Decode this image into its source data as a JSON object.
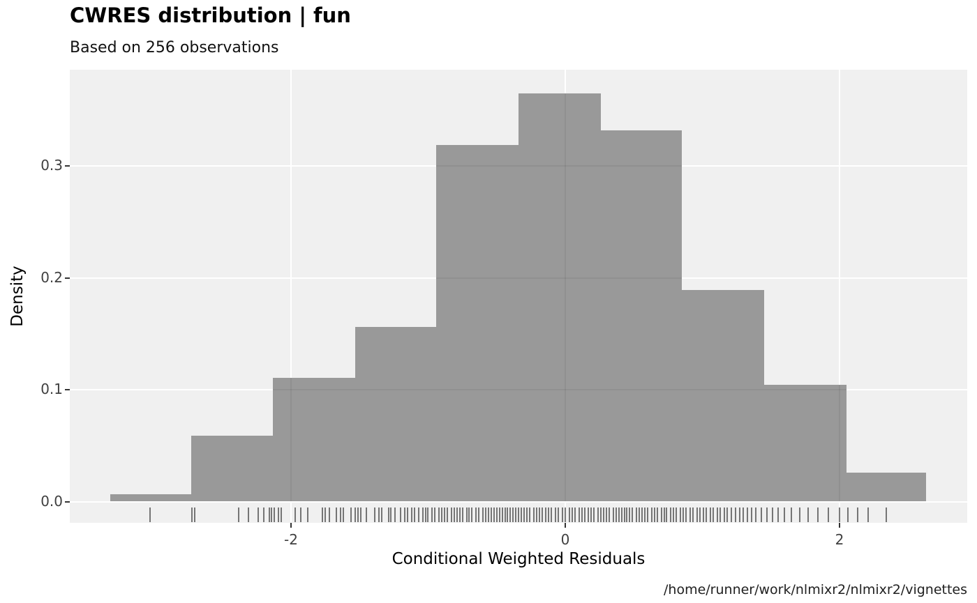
{
  "header": {
    "title": "CWRES distribution | fun",
    "subtitle": "Based on 256 observations"
  },
  "chart_data": {
    "type": "bar",
    "subtype": "histogram-with-rug",
    "title": "CWRES distribution | fun",
    "subtitle": "Based on 256 observations",
    "xlabel": "Conditional Weighted Residuals",
    "ylabel": "Density",
    "caption": "/home/runner/work/nlmixr2/nlmixr2/vignettes",
    "n_observations": 256,
    "grid": true,
    "legend": "none",
    "xlim": [
      -3.613,
      2.931
    ],
    "ylim": [
      0,
      0.386
    ],
    "x_ticks": [
      {
        "value": -2,
        "label": "-2"
      },
      {
        "value": 0,
        "label": "0"
      },
      {
        "value": 2,
        "label": "2"
      }
    ],
    "y_ticks": [
      {
        "value": 0.0,
        "label": "0.0"
      },
      {
        "value": 0.1,
        "label": "0.1"
      },
      {
        "value": 0.2,
        "label": "0.2"
      },
      {
        "value": 0.3,
        "label": "0.3"
      }
    ],
    "bin_width": 0.6,
    "bins": [
      {
        "x_left": -3.32,
        "x_right": -2.73,
        "count": 1,
        "density": 0.0065
      },
      {
        "x_left": -2.73,
        "x_right": -2.13,
        "count": 9,
        "density": 0.0586
      },
      {
        "x_left": -2.13,
        "x_right": -1.53,
        "count": 17,
        "density": 0.1107
      },
      {
        "x_left": -1.53,
        "x_right": -0.94,
        "count": 24,
        "density": 0.1563
      },
      {
        "x_left": -0.94,
        "x_right": -0.34,
        "count": 49,
        "density": 0.319
      },
      {
        "x_left": -0.34,
        "x_right": 0.26,
        "count": 56,
        "density": 0.3646
      },
      {
        "x_left": 0.26,
        "x_right": 0.85,
        "count": 51,
        "density": 0.332
      },
      {
        "x_left": 0.85,
        "x_right": 1.45,
        "count": 29,
        "density": 0.1888
      },
      {
        "x_left": 1.45,
        "x_right": 2.05,
        "count": 16,
        "density": 0.1042
      },
      {
        "x_left": 2.05,
        "x_right": 2.63,
        "count": 4,
        "density": 0.026
      }
    ],
    "rug_x": [
      -3.03,
      -2.72,
      -2.7,
      -2.38,
      -2.31,
      -2.24,
      -2.2,
      -2.16,
      -2.14,
      -2.12,
      -2.09,
      -2.07,
      -1.97,
      -1.93,
      -1.88,
      -1.77,
      -1.75,
      -1.72,
      -1.67,
      -1.64,
      -1.62,
      -1.56,
      -1.53,
      -1.51,
      -1.49,
      -1.45,
      -1.39,
      -1.36,
      -1.34,
      -1.29,
      -1.27,
      -1.24,
      -1.2,
      -1.17,
      -1.15,
      -1.12,
      -1.1,
      -1.07,
      -1.04,
      -1.02,
      -1.0,
      -0.97,
      -0.95,
      -0.92,
      -0.9,
      -0.88,
      -0.86,
      -0.83,
      -0.81,
      -0.79,
      -0.77,
      -0.75,
      -0.72,
      -0.7,
      -0.68,
      -0.65,
      -0.63,
      -0.6,
      -0.58,
      -0.56,
      -0.54,
      -0.52,
      -0.5,
      -0.48,
      -0.46,
      -0.44,
      -0.42,
      -0.4,
      -0.38,
      -0.36,
      -0.34,
      -0.32,
      -0.3,
      -0.28,
      -0.26,
      -0.23,
      -0.21,
      -0.19,
      -0.17,
      -0.14,
      -0.12,
      -0.1,
      -0.07,
      -0.05,
      -0.02,
      0.0,
      0.03,
      0.05,
      0.07,
      0.1,
      0.12,
      0.14,
      0.17,
      0.19,
      0.21,
      0.24,
      0.26,
      0.28,
      0.3,
      0.32,
      0.35,
      0.37,
      0.39,
      0.41,
      0.43,
      0.45,
      0.47,
      0.49,
      0.52,
      0.54,
      0.56,
      0.58,
      0.6,
      0.63,
      0.65,
      0.67,
      0.7,
      0.72,
      0.74,
      0.77,
      0.79,
      0.81,
      0.84,
      0.86,
      0.88,
      0.91,
      0.93,
      0.96,
      0.98,
      1.01,
      1.03,
      1.06,
      1.08,
      1.11,
      1.13,
      1.16,
      1.18,
      1.21,
      1.24,
      1.27,
      1.3,
      1.33,
      1.36,
      1.39,
      1.43,
      1.47,
      1.51,
      1.55,
      1.6,
      1.65,
      1.71,
      1.77,
      1.84,
      1.92,
      2.0,
      2.06,
      2.13,
      2.21,
      2.34
    ],
    "colors": {
      "bar_fill": "#999999",
      "panel_bg": "#f0f0f0",
      "gridline": "#ffffff",
      "rug": "#232323",
      "tick_mark": "#333333",
      "axis_text": "#404040",
      "title_text": "#000000",
      "page_bg": "#ffffff"
    }
  }
}
